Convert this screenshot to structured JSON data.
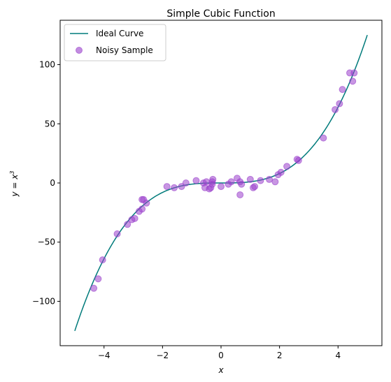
{
  "chart_data": {
    "type": "scatter",
    "title": "Simple Cubic Function",
    "xlabel": "x",
    "ylabel_base": "y = x",
    "ylabel_exponent": "3",
    "xlim": [
      -5.5,
      5.5
    ],
    "ylim": [
      -137.5,
      137.5
    ],
    "xticks": [
      -4,
      -2,
      0,
      2,
      4
    ],
    "xtick_labels": [
      "−4",
      "−2",
      "0",
      "2",
      "4"
    ],
    "yticks": [
      -100,
      -50,
      0,
      50,
      100
    ],
    "ytick_labels": [
      "−100",
      "−50",
      "0",
      "50",
      "100"
    ],
    "grid": false,
    "legend_placement": "top-left",
    "series": [
      {
        "name": "Ideal Curve",
        "kind": "line",
        "function": "x^3",
        "x_range": [
          -5,
          5
        ],
        "color": "#007b7b"
      },
      {
        "name": "Noisy Sample",
        "kind": "scatter",
        "color": "#9a40cc",
        "points": [
          [
            -4.35,
            -89
          ],
          [
            -4.2,
            -81
          ],
          [
            -4.05,
            -65
          ],
          [
            -3.55,
            -43
          ],
          [
            -3.2,
            -35
          ],
          [
            -3.05,
            -31
          ],
          [
            -2.95,
            -30
          ],
          [
            -2.8,
            -24
          ],
          [
            -2.7,
            -22
          ],
          [
            -2.7,
            -14
          ],
          [
            -2.65,
            -14
          ],
          [
            -2.55,
            -17
          ],
          [
            -1.85,
            -3
          ],
          [
            -1.6,
            -4
          ],
          [
            -1.35,
            -3
          ],
          [
            -1.2,
            0
          ],
          [
            -0.85,
            2
          ],
          [
            -0.6,
            0
          ],
          [
            -0.55,
            -4
          ],
          [
            -0.5,
            1
          ],
          [
            -0.4,
            -5
          ],
          [
            -0.35,
            -4
          ],
          [
            -0.3,
            -1
          ],
          [
            -0.3,
            1
          ],
          [
            -0.28,
            3
          ],
          [
            0.0,
            -3
          ],
          [
            0.25,
            -1
          ],
          [
            0.35,
            1
          ],
          [
            0.55,
            4
          ],
          [
            0.65,
            1
          ],
          [
            0.65,
            -10
          ],
          [
            0.7,
            -1
          ],
          [
            1.0,
            3
          ],
          [
            1.1,
            -4
          ],
          [
            1.15,
            -3
          ],
          [
            1.35,
            2
          ],
          [
            1.65,
            3
          ],
          [
            1.85,
            1
          ],
          [
            1.95,
            7
          ],
          [
            2.05,
            9
          ],
          [
            2.25,
            14
          ],
          [
            2.6,
            20
          ],
          [
            2.65,
            19
          ],
          [
            3.5,
            38
          ],
          [
            3.9,
            62
          ],
          [
            4.05,
            67
          ],
          [
            4.15,
            79
          ],
          [
            4.4,
            93
          ],
          [
            4.5,
            86
          ],
          [
            4.55,
            93
          ]
        ]
      }
    ]
  }
}
